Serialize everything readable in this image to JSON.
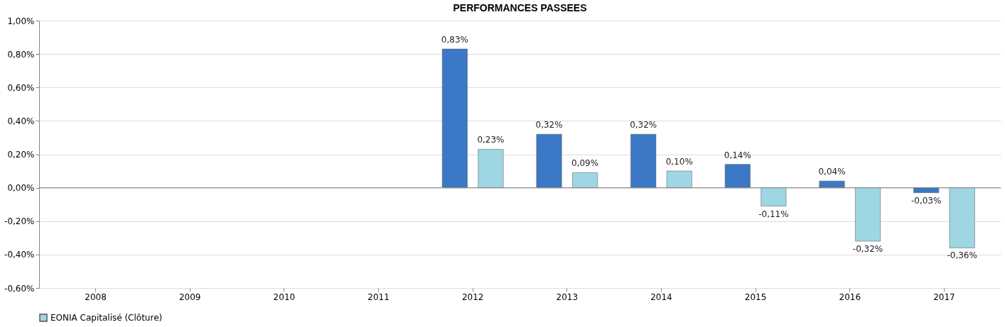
{
  "chart_data": {
    "type": "bar",
    "title": "PERFORMANCES PASSEES",
    "categories": [
      "2008",
      "2009",
      "2010",
      "2011",
      "2012",
      "2013",
      "2014",
      "2015",
      "2016",
      "2017"
    ],
    "series": [
      {
        "color": "#3b78c6",
        "values": [
          null,
          null,
          null,
          null,
          0.83,
          0.32,
          0.32,
          0.14,
          0.04,
          -0.03
        ],
        "value_labels": [
          null,
          null,
          null,
          null,
          "0,83%",
          "0,32%",
          "0,32%",
          "0,14%",
          "0,04%",
          "-0,03%"
        ]
      },
      {
        "name": "EONIA Capitalisé (Clôture)",
        "color": "#9ed6e4",
        "values": [
          null,
          null,
          null,
          null,
          0.23,
          0.09,
          0.1,
          -0.11,
          -0.32,
          -0.36
        ],
        "value_labels": [
          null,
          null,
          null,
          null,
          "0,23%",
          "0,09%",
          "0,10%",
          "-0,11%",
          "-0,32%",
          "-0,36%"
        ]
      }
    ],
    "ylim": [
      -0.6,
      1.0
    ],
    "yticks": [
      {
        "value": -0.6,
        "label": "-0,60%"
      },
      {
        "value": -0.4,
        "label": "-0,40%"
      },
      {
        "value": -0.2,
        "label": "-0,20%"
      },
      {
        "value": 0,
        "label": "0,00%"
      },
      {
        "value": 0.2,
        "label": "0,20%"
      },
      {
        "value": 0.4,
        "label": "0,40%"
      },
      {
        "value": 0.6,
        "label": "0,60%"
      },
      {
        "value": 0.8,
        "label": "0,80%"
      },
      {
        "value": 1.0,
        "label": "1,00%"
      }
    ],
    "grid": "y",
    "legend": "bottom"
  }
}
